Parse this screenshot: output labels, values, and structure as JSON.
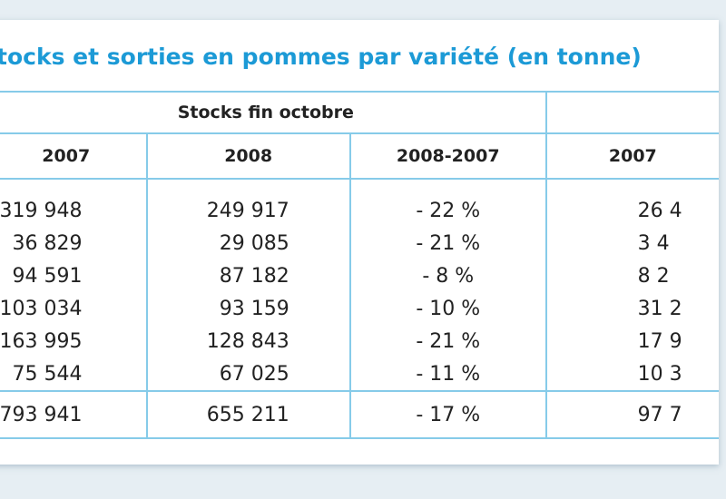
{
  "title": "Stocks et sorties en pommes par variété (en tonne)",
  "table": {
    "group_headers": [
      "Stocks fin octobre"
    ],
    "columns": [
      "2007",
      "2008",
      "2008-2007",
      "2007"
    ],
    "rows": [
      [
        "319 948",
        "249 917",
        "- 22 %",
        "26 4"
      ],
      [
        "36 829",
        "29 085",
        "- 21 %",
        "3 4"
      ],
      [
        "94 591",
        "87 182",
        "- 8 %",
        "8 2"
      ],
      [
        "103 034",
        "93 159",
        "- 10 %",
        "31 2"
      ],
      [
        "163 995",
        "128 843",
        "- 21 %",
        "17 9"
      ],
      [
        "75 544",
        "67 025",
        "- 11 %",
        "10 3"
      ]
    ],
    "total": [
      "793 941",
      "655 211",
      "- 17 %",
      "97 7"
    ]
  }
}
